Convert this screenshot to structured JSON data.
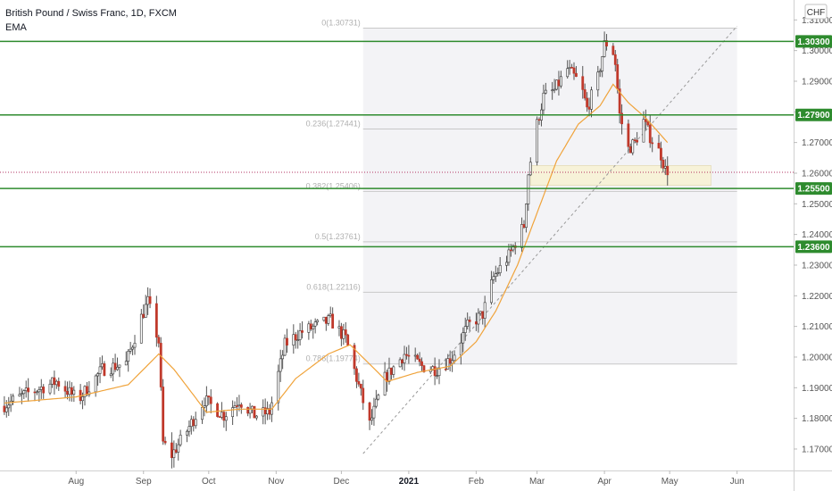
{
  "legend": {
    "title": "British Pound / Swiss Franc, 1D, FXCM",
    "indicator": "EMA"
  },
  "currency_label": "CHF",
  "colors": {
    "up": "#26a69a",
    "down": "#c0392b",
    "wick": "#555555",
    "ema": "#f0a33a",
    "level_line": "#2e8b2e",
    "fib_line": "#c8c8c8",
    "fib_fill": "#f3f3f6",
    "zone_fill": "#f7f2d8",
    "price_line": "#b03060",
    "axis_text": "#555555",
    "grid": "#f0f0f0"
  },
  "chart_data": {
    "type": "candlestick",
    "symbol": "GBPCHF",
    "timeframe": "1D",
    "ylim": [
      1.163,
      1.3165
    ],
    "y_ticks": [
      "1.31000",
      "1.30000",
      "1.29000",
      "1.28000",
      "1.27000",
      "1.26000",
      "1.25000",
      "1.24000",
      "1.23000",
      "1.22000",
      "1.21000",
      "1.20000",
      "1.19000",
      "1.18000",
      "1.17000"
    ],
    "x_ticks": [
      {
        "label": "Aug",
        "date": "2020-08-01",
        "bold": false
      },
      {
        "label": "Sep",
        "date": "2020-09-01",
        "bold": false
      },
      {
        "label": "Oct",
        "date": "2020-10-01",
        "bold": false
      },
      {
        "label": "Nov",
        "date": "2020-11-01",
        "bold": false
      },
      {
        "label": "Dec",
        "date": "2020-12-01",
        "bold": false
      },
      {
        "label": "2021",
        "date": "2021-01-01",
        "bold": true
      },
      {
        "label": "Feb",
        "date": "2021-02-01",
        "bold": false
      },
      {
        "label": "Mar",
        "date": "2021-03-01",
        "bold": false
      },
      {
        "label": "Apr",
        "date": "2021-04-01",
        "bold": false
      },
      {
        "label": "May",
        "date": "2021-05-01",
        "bold": false
      },
      {
        "label": "Jun",
        "date": "2021-06-01",
        "bold": false
      }
    ],
    "x_range": [
      "2020-06-27",
      "2021-06-27"
    ],
    "price_waypoints": [
      [
        "2020-06-29",
        1.184
      ],
      [
        "2020-07-10",
        1.188
      ],
      [
        "2020-07-24",
        1.192
      ],
      [
        "2020-08-03",
        1.186
      ],
      [
        "2020-08-14",
        1.196
      ],
      [
        "2020-08-25",
        1.198
      ],
      [
        "2020-09-01",
        1.213
      ],
      [
        "2020-09-04",
        1.218
      ],
      [
        "2020-09-09",
        1.205
      ],
      [
        "2020-09-11",
        1.172
      ],
      [
        "2020-09-15",
        1.168
      ],
      [
        "2020-09-22",
        1.176
      ],
      [
        "2020-09-30",
        1.186
      ],
      [
        "2020-10-09",
        1.181
      ],
      [
        "2020-10-16",
        1.186
      ],
      [
        "2020-10-23",
        1.181
      ],
      [
        "2020-10-30",
        1.182
      ],
      [
        "2020-11-06",
        1.204
      ],
      [
        "2020-11-13",
        1.208
      ],
      [
        "2020-11-20",
        1.21
      ],
      [
        "2020-11-27",
        1.212
      ],
      [
        "2020-12-04",
        1.206
      ],
      [
        "2020-12-11",
        1.188
      ],
      [
        "2020-12-15",
        1.178
      ],
      [
        "2020-12-22",
        1.193
      ],
      [
        "2020-12-31",
        1.201
      ],
      [
        "2021-01-08",
        1.197
      ],
      [
        "2021-01-15",
        1.196
      ],
      [
        "2021-01-22",
        1.2
      ],
      [
        "2021-01-29",
        1.21
      ],
      [
        "2021-02-05",
        1.214
      ],
      [
        "2021-02-10",
        1.226
      ],
      [
        "2021-02-17",
        1.233
      ],
      [
        "2021-02-19",
        1.236
      ],
      [
        "2021-02-24",
        1.243
      ],
      [
        "2021-02-26",
        1.26
      ],
      [
        "2021-03-02",
        1.276
      ],
      [
        "2021-03-05",
        1.285
      ],
      [
        "2021-03-10",
        1.287
      ],
      [
        "2021-03-16",
        1.294
      ],
      [
        "2021-03-22",
        1.289
      ],
      [
        "2021-03-25",
        1.281
      ],
      [
        "2021-03-30",
        1.291
      ],
      [
        "2021-04-02",
        1.302
      ],
      [
        "2021-04-05",
        1.303
      ],
      [
        "2021-04-07",
        1.296
      ],
      [
        "2021-04-09",
        1.279
      ],
      [
        "2021-04-13",
        1.268
      ],
      [
        "2021-04-16",
        1.27
      ],
      [
        "2021-04-20",
        1.277
      ],
      [
        "2021-04-23",
        1.272
      ],
      [
        "2021-04-28",
        1.266
      ],
      [
        "2021-04-30",
        1.261
      ]
    ],
    "ema_waypoints": [
      [
        "2020-06-29",
        1.185
      ],
      [
        "2020-08-01",
        1.187
      ],
      [
        "2020-08-25",
        1.191
      ],
      [
        "2020-09-08",
        1.201
      ],
      [
        "2020-09-15",
        1.196
      ],
      [
        "2020-09-30",
        1.182
      ],
      [
        "2020-10-15",
        1.183
      ],
      [
        "2020-10-30",
        1.183
      ],
      [
        "2020-11-10",
        1.193
      ],
      [
        "2020-11-25",
        1.201
      ],
      [
        "2020-12-05",
        1.204
      ],
      [
        "2020-12-15",
        1.197
      ],
      [
        "2020-12-22",
        1.192
      ],
      [
        "2021-01-05",
        1.195
      ],
      [
        "2021-01-20",
        1.197
      ],
      [
        "2021-02-01",
        1.205
      ],
      [
        "2021-02-10",
        1.215
      ],
      [
        "2021-02-20",
        1.23
      ],
      [
        "2021-03-01",
        1.247
      ],
      [
        "2021-03-10",
        1.264
      ],
      [
        "2021-03-20",
        1.276
      ],
      [
        "2021-03-30",
        1.282
      ],
      [
        "2021-04-05",
        1.289
      ],
      [
        "2021-04-12",
        1.283
      ],
      [
        "2021-04-20",
        1.278
      ],
      [
        "2021-04-30",
        1.27
      ]
    ],
    "horizontal_levels": [
      1.303,
      1.279,
      1.255,
      1.236
    ],
    "fibonacci": {
      "start_date": "2020-12-11",
      "end_date": "2021-06-01",
      "levels": [
        {
          "label": "0(1.30731)",
          "value": 1.30731
        },
        {
          "label": "0.236(1.27441)",
          "value": 1.27441
        },
        {
          "label": "0.382(1.25406)",
          "value": 1.25406
        },
        {
          "label": "0.5(1.23761)",
          "value": 1.23761
        },
        {
          "label": "0.618(1.22116)",
          "value": 1.22116
        },
        {
          "label": "0.786(1.19774)",
          "value": 1.19774
        }
      ]
    },
    "trendline": {
      "from": [
        "2020-12-11",
        1.1685
      ],
      "to": [
        "2021-06-01",
        1.308
      ]
    },
    "zone": {
      "from_date": "2021-02-26",
      "to_date": "2021-05-20",
      "top": 1.2625,
      "bottom": 1.256
    },
    "current_price": 1.2603,
    "price_labels": [
      {
        "text": "1.30300",
        "value": 1.303
      },
      {
        "text": "1.27900",
        "value": 1.279
      },
      {
        "text": "1.25500",
        "value": 1.255
      },
      {
        "text": "1.23600",
        "value": 1.236
      }
    ]
  }
}
